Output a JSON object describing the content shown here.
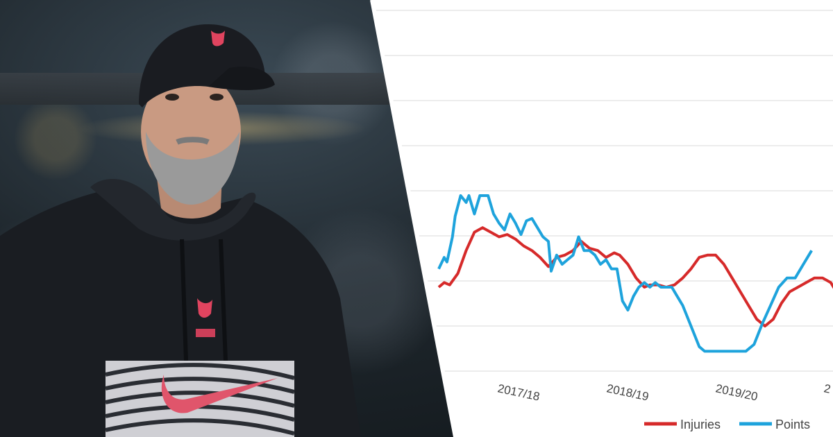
{
  "chart_data": {
    "type": "line",
    "x_categories": [
      "2017/18",
      "2018/19",
      "2019/20",
      "2"
    ],
    "grid": true,
    "legend_position": "bottom-right",
    "series": [
      {
        "name": "Injuries",
        "color": "#d62a2a",
        "values": [
          [
            0.0,
            0.8
          ],
          [
            0.02,
            0.78
          ],
          [
            0.04,
            0.79
          ],
          [
            0.07,
            0.74
          ],
          [
            0.1,
            0.64
          ],
          [
            0.13,
            0.56
          ],
          [
            0.16,
            0.54
          ],
          [
            0.19,
            0.56
          ],
          [
            0.22,
            0.58
          ],
          [
            0.25,
            0.57
          ],
          [
            0.28,
            0.59
          ],
          [
            0.31,
            0.62
          ],
          [
            0.34,
            0.64
          ],
          [
            0.37,
            0.67
          ],
          [
            0.4,
            0.71
          ],
          [
            0.43,
            0.67
          ],
          [
            0.46,
            0.66
          ],
          [
            0.49,
            0.64
          ],
          [
            0.52,
            0.6
          ],
          [
            0.55,
            0.63
          ],
          [
            0.58,
            0.64
          ],
          [
            0.61,
            0.67
          ],
          [
            0.64,
            0.65
          ],
          [
            0.66,
            0.66
          ],
          [
            0.69,
            0.7
          ],
          [
            0.72,
            0.76
          ],
          [
            0.75,
            0.8
          ],
          [
            0.77,
            0.79
          ],
          [
            0.8,
            0.79
          ],
          [
            0.83,
            0.8
          ],
          [
            0.86,
            0.79
          ],
          [
            0.89,
            0.76
          ],
          [
            0.92,
            0.72
          ],
          [
            0.95,
            0.67
          ],
          [
            0.98,
            0.66
          ],
          [
            1.01,
            0.66
          ],
          [
            1.04,
            0.7
          ],
          [
            1.07,
            0.76
          ],
          [
            1.1,
            0.82
          ],
          [
            1.13,
            0.88
          ],
          [
            1.16,
            0.94
          ],
          [
            1.19,
            0.97
          ],
          [
            1.22,
            0.94
          ],
          [
            1.25,
            0.87
          ],
          [
            1.28,
            0.82
          ],
          [
            1.31,
            0.8
          ],
          [
            1.34,
            0.78
          ],
          [
            1.37,
            0.76
          ],
          [
            1.4,
            0.76
          ],
          [
            1.43,
            0.78
          ],
          [
            1.45,
            0.82
          ]
        ]
      },
      {
        "name": "Points",
        "color": "#1ea3dc",
        "values": [
          [
            0.0,
            0.72
          ],
          [
            0.02,
            0.67
          ],
          [
            0.03,
            0.69
          ],
          [
            0.05,
            0.58
          ],
          [
            0.06,
            0.49
          ],
          [
            0.08,
            0.4
          ],
          [
            0.1,
            0.43
          ],
          [
            0.11,
            0.4
          ],
          [
            0.13,
            0.48
          ],
          [
            0.15,
            0.4
          ],
          [
            0.18,
            0.4
          ],
          [
            0.2,
            0.48
          ],
          [
            0.22,
            0.52
          ],
          [
            0.24,
            0.55
          ],
          [
            0.26,
            0.48
          ],
          [
            0.28,
            0.52
          ],
          [
            0.3,
            0.57
          ],
          [
            0.32,
            0.51
          ],
          [
            0.34,
            0.5
          ],
          [
            0.36,
            0.54
          ],
          [
            0.38,
            0.58
          ],
          [
            0.4,
            0.6
          ],
          [
            0.41,
            0.73
          ],
          [
            0.43,
            0.66
          ],
          [
            0.45,
            0.7
          ],
          [
            0.47,
            0.68
          ],
          [
            0.49,
            0.66
          ],
          [
            0.51,
            0.58
          ],
          [
            0.53,
            0.64
          ],
          [
            0.55,
            0.64
          ],
          [
            0.57,
            0.66
          ],
          [
            0.59,
            0.7
          ],
          [
            0.61,
            0.68
          ],
          [
            0.63,
            0.72
          ],
          [
            0.65,
            0.72
          ],
          [
            0.67,
            0.86
          ],
          [
            0.69,
            0.9
          ],
          [
            0.71,
            0.84
          ],
          [
            0.73,
            0.8
          ],
          [
            0.75,
            0.78
          ],
          [
            0.77,
            0.8
          ],
          [
            0.79,
            0.78
          ],
          [
            0.81,
            0.8
          ],
          [
            0.83,
            0.8
          ],
          [
            0.85,
            0.8
          ],
          [
            0.87,
            0.84
          ],
          [
            0.89,
            0.88
          ],
          [
            0.91,
            0.94
          ],
          [
            0.93,
            1.0
          ],
          [
            0.95,
            1.06
          ],
          [
            0.97,
            1.08
          ],
          [
            1.0,
            1.08
          ],
          [
            1.03,
            1.08
          ],
          [
            1.06,
            1.08
          ],
          [
            1.09,
            1.08
          ],
          [
            1.12,
            1.08
          ],
          [
            1.15,
            1.05
          ],
          [
            1.18,
            0.96
          ],
          [
            1.21,
            0.88
          ],
          [
            1.24,
            0.8
          ],
          [
            1.27,
            0.76
          ],
          [
            1.3,
            0.76
          ],
          [
            1.33,
            0.7
          ],
          [
            1.36,
            0.64
          ]
        ]
      }
    ]
  }
}
